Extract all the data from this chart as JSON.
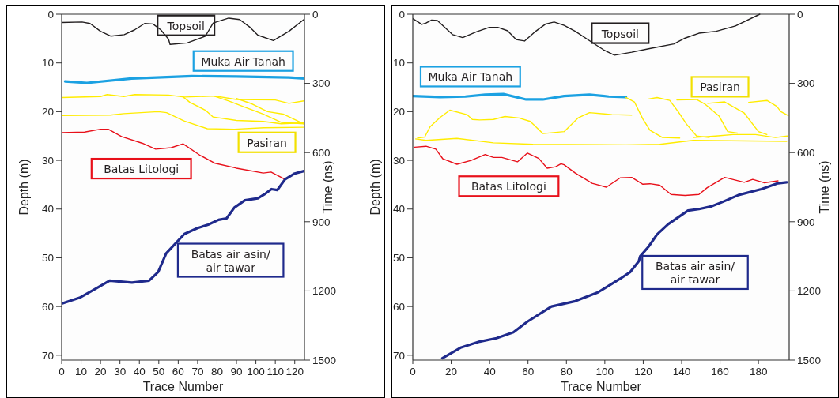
{
  "chart_data": [
    {
      "type": "line",
      "xlabel": "Trace Number",
      "ylabel": "Depth (m)",
      "y2label": "Time (ns)",
      "xlim": [
        0,
        125
      ],
      "xticks": [
        0,
        10,
        20,
        30,
        40,
        50,
        60,
        70,
        80,
        90,
        100,
        110,
        120
      ],
      "ylim": [
        71,
        0
      ],
      "yticks": [
        0,
        10,
        20,
        30,
        40,
        50,
        60,
        70
      ],
      "y2lim": [
        1500,
        0
      ],
      "y2ticks": [
        0,
        300,
        600,
        900,
        1200,
        1500
      ],
      "grid": false,
      "marker": "none",
      "line_style": "solid",
      "series": [
        {
          "name": "Topsoil",
          "color": "#231f20",
          "x": [
            0,
            10.5,
            14.6,
            20,
            25.4,
            32.2,
            37.6,
            42.7,
            47,
            51,
            55,
            55.8,
            64.6,
            74,
            78,
            86,
            91.6,
            97,
            101,
            109,
            117,
            124.7
          ],
          "values": [
            1.7,
            1.6,
            1.9,
            3.5,
            4.5,
            4.2,
            3.2,
            1.9,
            2,
            3.2,
            5.1,
            6.2,
            5.9,
            4.5,
            1.8,
            0.8,
            1.1,
            2.7,
            4.3,
            5.4,
            3.5,
            1.1
          ]
        },
        {
          "name": "Muka Air Tanah",
          "color": "#1ba1e2",
          "x": [
            1.8,
            13,
            36,
            67,
            90,
            117,
            125
          ],
          "values": [
            13.8,
            14.1,
            13.2,
            12.7,
            12.8,
            13,
            13.2
          ]
        },
        {
          "color": "#ffec00",
          "x": [
            0,
            20,
            23.4,
            32,
            37.6,
            55,
            63,
            79,
            90,
            110,
            117,
            124.7
          ],
          "values": [
            17.1,
            16.9,
            16.5,
            16.9,
            16.5,
            16.6,
            17,
            16.8,
            17.5,
            17.6,
            18.3,
            17.8
          ]
        },
        {
          "name": "Pasiran",
          "color": "#ffec00",
          "x": [
            0,
            25,
            32,
            49.7,
            54,
            63,
            75,
            89,
            104,
            124.7
          ],
          "values": [
            20.8,
            20.7,
            20.4,
            20,
            20.2,
            21.9,
            23.5,
            23.6,
            23.3,
            23.2
          ]
        },
        {
          "color": "#ffec00",
          "x": [
            62,
            66,
            74,
            78,
            90,
            103.7,
            113,
            124.7
          ],
          "values": [
            16.8,
            18.1,
            19.7,
            21.1,
            21.8,
            22,
            22.5,
            22.3
          ]
        },
        {
          "color": "#ffec00",
          "x": [
            78.4,
            86,
            95,
            103.7,
            113,
            124.7
          ],
          "values": [
            16.8,
            17.8,
            19.2,
            20.5,
            22.2,
            22.5
          ]
        },
        {
          "color": "#ffec00",
          "x": [
            90,
            98,
            106,
            114,
            124.7
          ],
          "values": [
            17.3,
            18.4,
            20,
            20.5,
            22.5
          ]
        },
        {
          "name": "Batas Litologi",
          "color": "#e8101a",
          "x": [
            0,
            11.8,
            20,
            24,
            30.8,
            41.6,
            48.4,
            56.4,
            62.5,
            71,
            79,
            90,
            103.8,
            107.8,
            115
          ],
          "values": [
            24.3,
            24.2,
            23.6,
            23.6,
            25.1,
            26.5,
            27.7,
            27.4,
            26.6,
            28.9,
            30.6,
            31.6,
            32.6,
            32.4,
            33.9
          ]
        },
        {
          "name": "Batas air asin/ air tawar",
          "color": "#1f2a8c",
          "x": [
            0,
            9.2,
            17.3,
            24.7,
            36.2,
            45,
            49.7,
            53.8,
            63.2,
            70,
            75.4,
            80.8,
            84.9,
            88.9,
            94.3,
            101,
            105,
            108,
            111,
            115,
            120,
            124.7
          ],
          "values": [
            59.4,
            58.2,
            56.4,
            54.7,
            55.1,
            54.7,
            52.9,
            49.1,
            45.1,
            43.9,
            43.2,
            42.2,
            41.9,
            39.7,
            38.2,
            37.8,
            36.8,
            35.9,
            36.1,
            33.9,
            32.7,
            32.2
          ]
        }
      ]
    },
    {
      "type": "line",
      "xlabel": "Trace Number",
      "ylabel": "Depth (m)",
      "y2label": "Time (ns)",
      "xlim": [
        0,
        196
      ],
      "xticks": [
        0,
        20,
        40,
        60,
        80,
        100,
        120,
        140,
        160,
        180
      ],
      "ylim": [
        71,
        0
      ],
      "yticks": [
        0,
        10,
        20,
        30,
        40,
        50,
        60,
        70
      ],
      "y2lim": [
        1500,
        0
      ],
      "y2ticks": [
        0,
        300,
        600,
        900,
        1200,
        1500
      ],
      "grid": false,
      "marker": "none",
      "line_style": "solid",
      "series": [
        {
          "name": "Topsoil",
          "color": "#231f20",
          "x": [
            0,
            4.7,
            6.9,
            9.8,
            12.8,
            20.8,
            26,
            33.3,
            39.9,
            44.3,
            49.4,
            53.8,
            58.2,
            64,
            69.2,
            73.6,
            78.8,
            84.6,
            93.4,
            99.3,
            105,
            114,
            122.8,
            136,
            141.8,
            149,
            158,
            168,
            180.7
          ],
          "values": [
            0.9,
            2.1,
            1.8,
            1.2,
            1.3,
            4.2,
            4.8,
            3.6,
            2.7,
            2.7,
            3.4,
            5.2,
            5.5,
            3.5,
            2,
            1.6,
            2.3,
            3.5,
            5.8,
            7.3,
            8.4,
            7.8,
            7.1,
            6.1,
            4.9,
            3.9,
            3.5,
            2.4,
            0
          ]
        },
        {
          "name": "Muka Air Tanah",
          "color": "#1ba1e2",
          "x": [
            0,
            14.2,
            27.4,
            37.7,
            47.2,
            59,
            67.8,
            78.8,
            92,
            102,
            111
          ],
          "values": [
            16.8,
            17,
            16.9,
            16.5,
            16.4,
            17.5,
            17.5,
            16.8,
            16.5,
            16.9,
            17
          ]
        },
        {
          "color": "#ffec00",
          "x": [
            1.5,
            6.9,
            23,
            42,
            62.6,
            111,
            128.6,
            146,
            194.7
          ],
          "values": [
            25.6,
            25.9,
            25.5,
            26.4,
            26.7,
            26.8,
            26.7,
            25.9,
            26.1
          ]
        },
        {
          "color": "#ffec00",
          "x": [
            2.5,
            6.2,
            9,
            14.2,
            19.3,
            28.2,
            31,
            34.8,
            42,
            48,
            55.3,
            61.2,
            67.8,
            78.8,
            86,
            92,
            103.7,
            114
          ],
          "values": [
            25.4,
            25.2,
            23.1,
            21.2,
            19.7,
            20.6,
            21.6,
            21.7,
            21.6,
            21,
            21.3,
            22,
            24.5,
            24.1,
            21.3,
            20.2,
            20.6,
            20.7
          ]
        },
        {
          "color": "#ffec00",
          "x": [
            111,
            115.4,
            119.8,
            123.5,
            130,
            139
          ],
          "values": [
            17.1,
            18,
            21.5,
            23.8,
            25.3,
            25.4
          ]
        },
        {
          "color": "#ffec00",
          "x": [
            122.8,
            127.2,
            133.8,
            138.2,
            142.6,
            147.8,
            154.3
          ],
          "values": [
            17.4,
            17.1,
            17.7,
            20,
            22.6,
            25,
            25.3
          ]
        },
        {
          "color": "#ffec00",
          "x": [
            137.5,
            147.7,
            152,
            159.5,
            164,
            169
          ],
          "values": [
            17.6,
            17.5,
            18.4,
            20.9,
            24.1,
            24.4
          ]
        },
        {
          "name": "Pasiran",
          "color": "#ffec00",
          "x": [
            153.6,
            162.4,
            172.6,
            180,
            184.4
          ],
          "values": [
            18.3,
            18,
            20.3,
            24.1,
            24.7
          ]
        },
        {
          "color": "#ffec00",
          "x": [
            174.9,
            184.4,
            189.5,
            191.7,
            195.5
          ],
          "values": [
            18.1,
            17.7,
            18.9,
            20,
            20.8
          ]
        },
        {
          "color": "#ffec00",
          "x": [
            146,
            157.7,
            166.8,
            178.5,
            188.8,
            195
          ],
          "values": [
            25.3,
            25,
            24.7,
            24.7,
            25.3,
            25
          ]
        },
        {
          "name": "Batas Litologi",
          "color": "#e8101a",
          "x": [
            1,
            6.9,
            12,
            15.7,
            23,
            30.4,
            37.7,
            42,
            46.4,
            54.5,
            59.7,
            65.6,
            70,
            74.4,
            77.2,
            78.8,
            84.6,
            93.4,
            100.8,
            108,
            114,
            119.8,
            123.5,
            128.6,
            134.5,
            141.8,
            149,
            153.3,
            162.4,
            172.6,
            177,
            182.9,
            190.2
          ],
          "values": [
            27.3,
            27.1,
            27.7,
            29.7,
            30.8,
            30,
            28.8,
            29.4,
            29.4,
            30.3,
            28.5,
            29.6,
            31.6,
            31.3,
            30.7,
            30.9,
            32.6,
            34.7,
            35.5,
            33.6,
            33.5,
            34.9,
            34.8,
            35.1,
            37,
            37.2,
            37,
            35.6,
            33.5,
            34.5,
            33.9,
            34.6,
            34.2
          ]
        },
        {
          "name": "Batas air asin/ air tawar",
          "color": "#1f2a8c",
          "x": [
            15.4,
            25.2,
            34.8,
            43.6,
            52.4,
            59.7,
            72.2,
            84.6,
            96.4,
            108,
            113.3,
            117.7,
            118.4,
            122.8,
            127.2,
            133,
            143.3,
            149,
            155,
            160.9,
            169.7,
            181.5,
            190.2,
            194.7
          ],
          "values": [
            70.6,
            68.4,
            67.2,
            66.5,
            65.3,
            63.1,
            60,
            58.9,
            57.1,
            54.3,
            52.9,
            50.7,
            49.7,
            47.7,
            45.2,
            43.1,
            40.3,
            40,
            39.5,
            38.6,
            37.1,
            35.9,
            34.7,
            34.5
          ]
        }
      ]
    }
  ]
}
